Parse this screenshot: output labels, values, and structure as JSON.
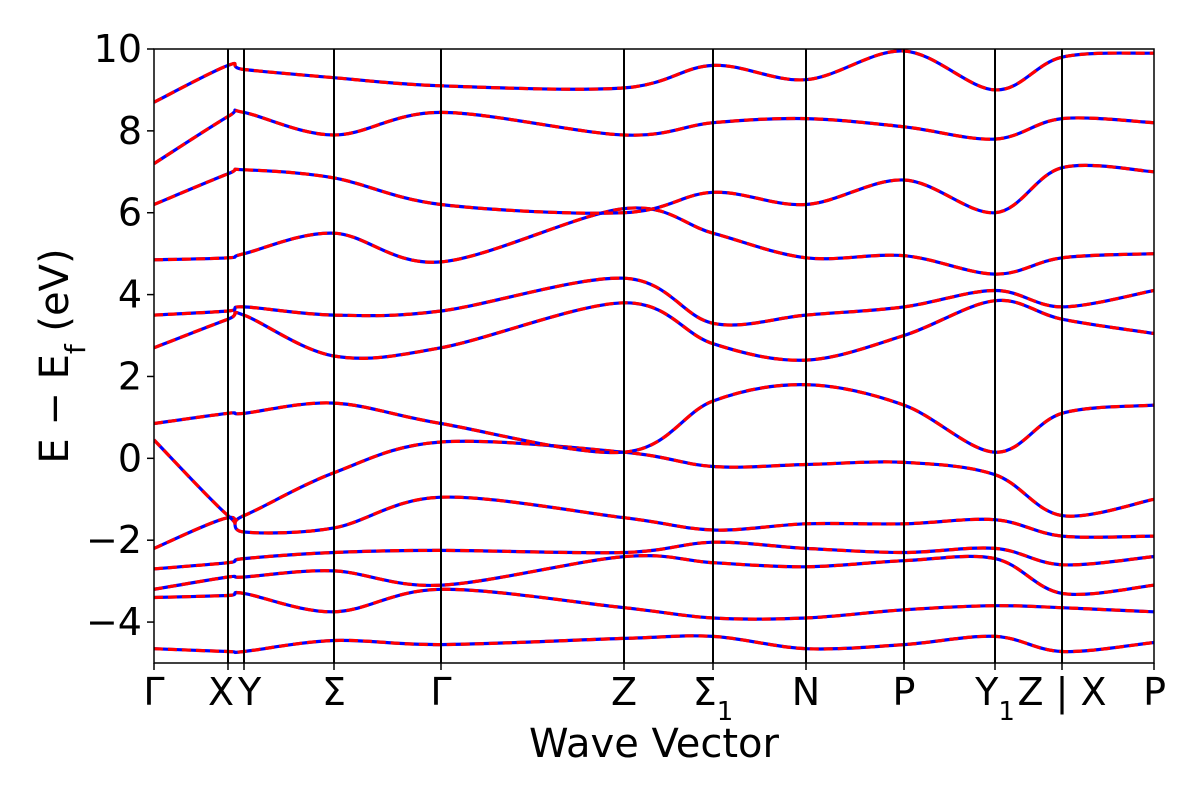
{
  "chart_data": {
    "type": "line",
    "title": "",
    "xlabel": "Wave Vector",
    "ylabel": "E − E_f (eV)",
    "ylabel_parts": {
      "main": "E − E",
      "sub": "f",
      "unit": " (eV)"
    },
    "ylim": [
      -5,
      10
    ],
    "y_ticks": [
      -4,
      -2,
      0,
      2,
      4,
      6,
      8,
      10
    ],
    "y_tick_labels": [
      "−4",
      "−2",
      "0",
      "2",
      "4",
      "6",
      "8",
      "10"
    ],
    "grid": false,
    "k_path": [
      {
        "label": "Γ"
      },
      {
        "label": "X"
      },
      {
        "label": "Y"
      },
      {
        "label": "Σ"
      },
      {
        "label": "Γ"
      },
      {
        "label": "Z"
      },
      {
        "label": "Σ",
        "sub": "1"
      },
      {
        "label": "N"
      },
      {
        "label": "P"
      },
      {
        "label": "Y",
        "sub": "1"
      },
      {
        "label": "Z | X"
      },
      {
        "label": "P"
      }
    ],
    "k_positions": [
      0,
      0.74,
      0.9,
      1.8,
      2.87,
      4.7,
      5.59,
      6.52,
      7.5,
      8.41,
      9.08,
      10.0
    ],
    "colors": {
      "up": "#0000ff",
      "down": "#ff0000",
      "segment_line": "#000000"
    },
    "bands": [
      [
        -4.65,
        -4.72,
        -4.72,
        -4.45,
        -4.55,
        -4.4,
        -4.35,
        -4.65,
        -4.55,
        -4.35,
        -4.72,
        -4.5
      ],
      [
        -3.4,
        -3.35,
        -3.3,
        -3.75,
        -3.2,
        -3.65,
        -3.9,
        -3.9,
        -3.7,
        -3.6,
        -3.65,
        -3.75
      ],
      [
        -3.2,
        -2.9,
        -2.9,
        -2.75,
        -3.1,
        -2.4,
        -2.55,
        -2.65,
        -2.5,
        -2.45,
        -3.3,
        -3.1
      ],
      [
        -2.7,
        -2.55,
        -2.45,
        -2.3,
        -2.25,
        -2.3,
        -2.05,
        -2.2,
        -2.3,
        -2.2,
        -2.6,
        -2.4
      ],
      [
        -2.2,
        -1.45,
        -1.8,
        -1.7,
        -0.95,
        -1.45,
        -1.75,
        -1.6,
        -1.6,
        -1.5,
        -1.9,
        -1.9
      ],
      [
        0.45,
        -1.4,
        -1.4,
        -0.35,
        0.4,
        0.15,
        -0.2,
        -0.15,
        -0.1,
        -0.4,
        -1.4,
        -1.0
      ],
      [
        0.85,
        1.1,
        1.1,
        1.35,
        0.85,
        0.15,
        1.4,
        1.8,
        1.3,
        0.15,
        1.1,
        1.3
      ],
      [
        2.7,
        3.4,
        3.5,
        2.5,
        2.7,
        3.8,
        2.8,
        2.4,
        3.0,
        3.85,
        3.4,
        3.05
      ],
      [
        3.5,
        3.6,
        3.7,
        3.5,
        3.6,
        4.4,
        3.3,
        3.5,
        3.7,
        4.1,
        3.7,
        4.1
      ],
      [
        4.85,
        4.9,
        5.0,
        5.5,
        4.8,
        6.1,
        5.5,
        4.9,
        4.95,
        4.5,
        4.9,
        5.0
      ],
      [
        6.2,
        6.95,
        7.05,
        6.85,
        6.2,
        6.0,
        6.5,
        6.2,
        6.8,
        6.0,
        7.1,
        7.0
      ],
      [
        7.2,
        8.35,
        8.45,
        7.9,
        8.45,
        7.9,
        8.2,
        8.3,
        8.1,
        7.8,
        8.3,
        8.2
      ],
      [
        8.7,
        9.6,
        9.5,
        9.3,
        9.1,
        9.05,
        9.6,
        9.25,
        9.95,
        9.0,
        9.8,
        9.9
      ]
    ]
  }
}
